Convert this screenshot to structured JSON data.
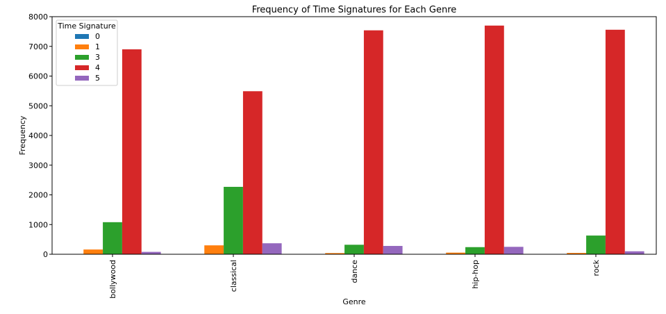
{
  "chart_data": {
    "type": "bar",
    "title": "Frequency of Time Signatures for Each Genre",
    "xlabel": "Genre",
    "ylabel": "Frequency",
    "ylim": [
      0,
      8000
    ],
    "yticks": [
      0,
      1000,
      2000,
      3000,
      4000,
      5000,
      6000,
      7000,
      8000
    ],
    "categories": [
      "bollywood",
      "classical",
      "dance",
      "hip-hop",
      "rock"
    ],
    "legend_title": "Time Signature",
    "legend_position": "top-left",
    "grid": false,
    "series": [
      {
        "name": "0",
        "color": "#1f77b4",
        "values": [
          0,
          5,
          0,
          0,
          0
        ]
      },
      {
        "name": "1",
        "color": "#ff7f0e",
        "values": [
          160,
          300,
          40,
          55,
          45
        ]
      },
      {
        "name": "3",
        "color": "#2ca02c",
        "values": [
          1080,
          2270,
          320,
          240,
          630
        ]
      },
      {
        "name": "4",
        "color": "#d62728",
        "values": [
          6900,
          5490,
          7540,
          7700,
          7560
        ]
      },
      {
        "name": "5",
        "color": "#9467bd",
        "values": [
          80,
          370,
          280,
          250,
          100
        ]
      }
    ]
  }
}
